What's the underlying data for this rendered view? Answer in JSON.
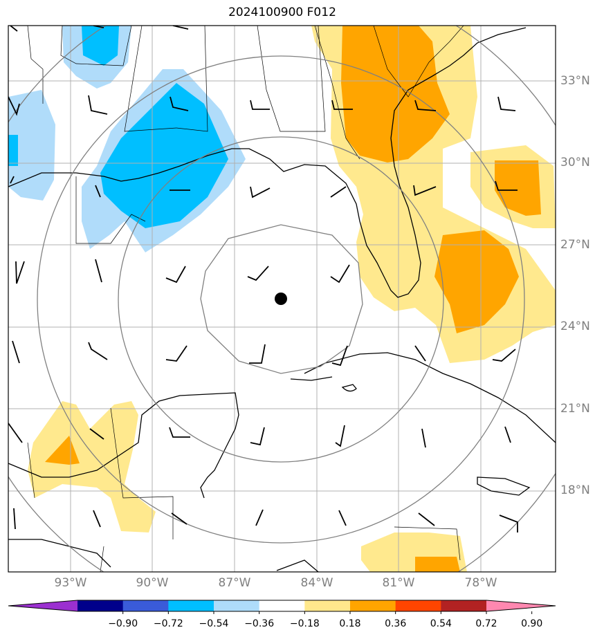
{
  "title": "2024100900 F012",
  "lat_labels": [
    "33°N",
    "30°N",
    "27°N",
    "24°N",
    "21°N",
    "18°N"
  ],
  "lon_labels": [
    "93°W",
    "90°W",
    "87°W",
    "84°W",
    "81°W",
    "78°W"
  ],
  "colorbar": {
    "ticks": [
      "−0.90",
      "−0.72",
      "−0.54",
      "−0.36",
      "−0.18",
      "0.18",
      "0.36",
      "0.54",
      "0.72",
      "0.90"
    ],
    "colors": [
      "#9b30d0",
      "#00008b",
      "#3a5bd9",
      "#00bfff",
      "#aedcfa",
      "#ffffff",
      "#ffe88c",
      "#ffa500",
      "#ff4500",
      "#b22222",
      "#ff88b0"
    ]
  },
  "center_marker": "storm-center-dot",
  "colors": {
    "light_blue": "#b0dcfa",
    "blue": "#00bfff",
    "light_yellow": "#ffe98e",
    "orange": "#ffa500",
    "grid": "#b0b0b0",
    "range_ring": "#808080"
  }
}
